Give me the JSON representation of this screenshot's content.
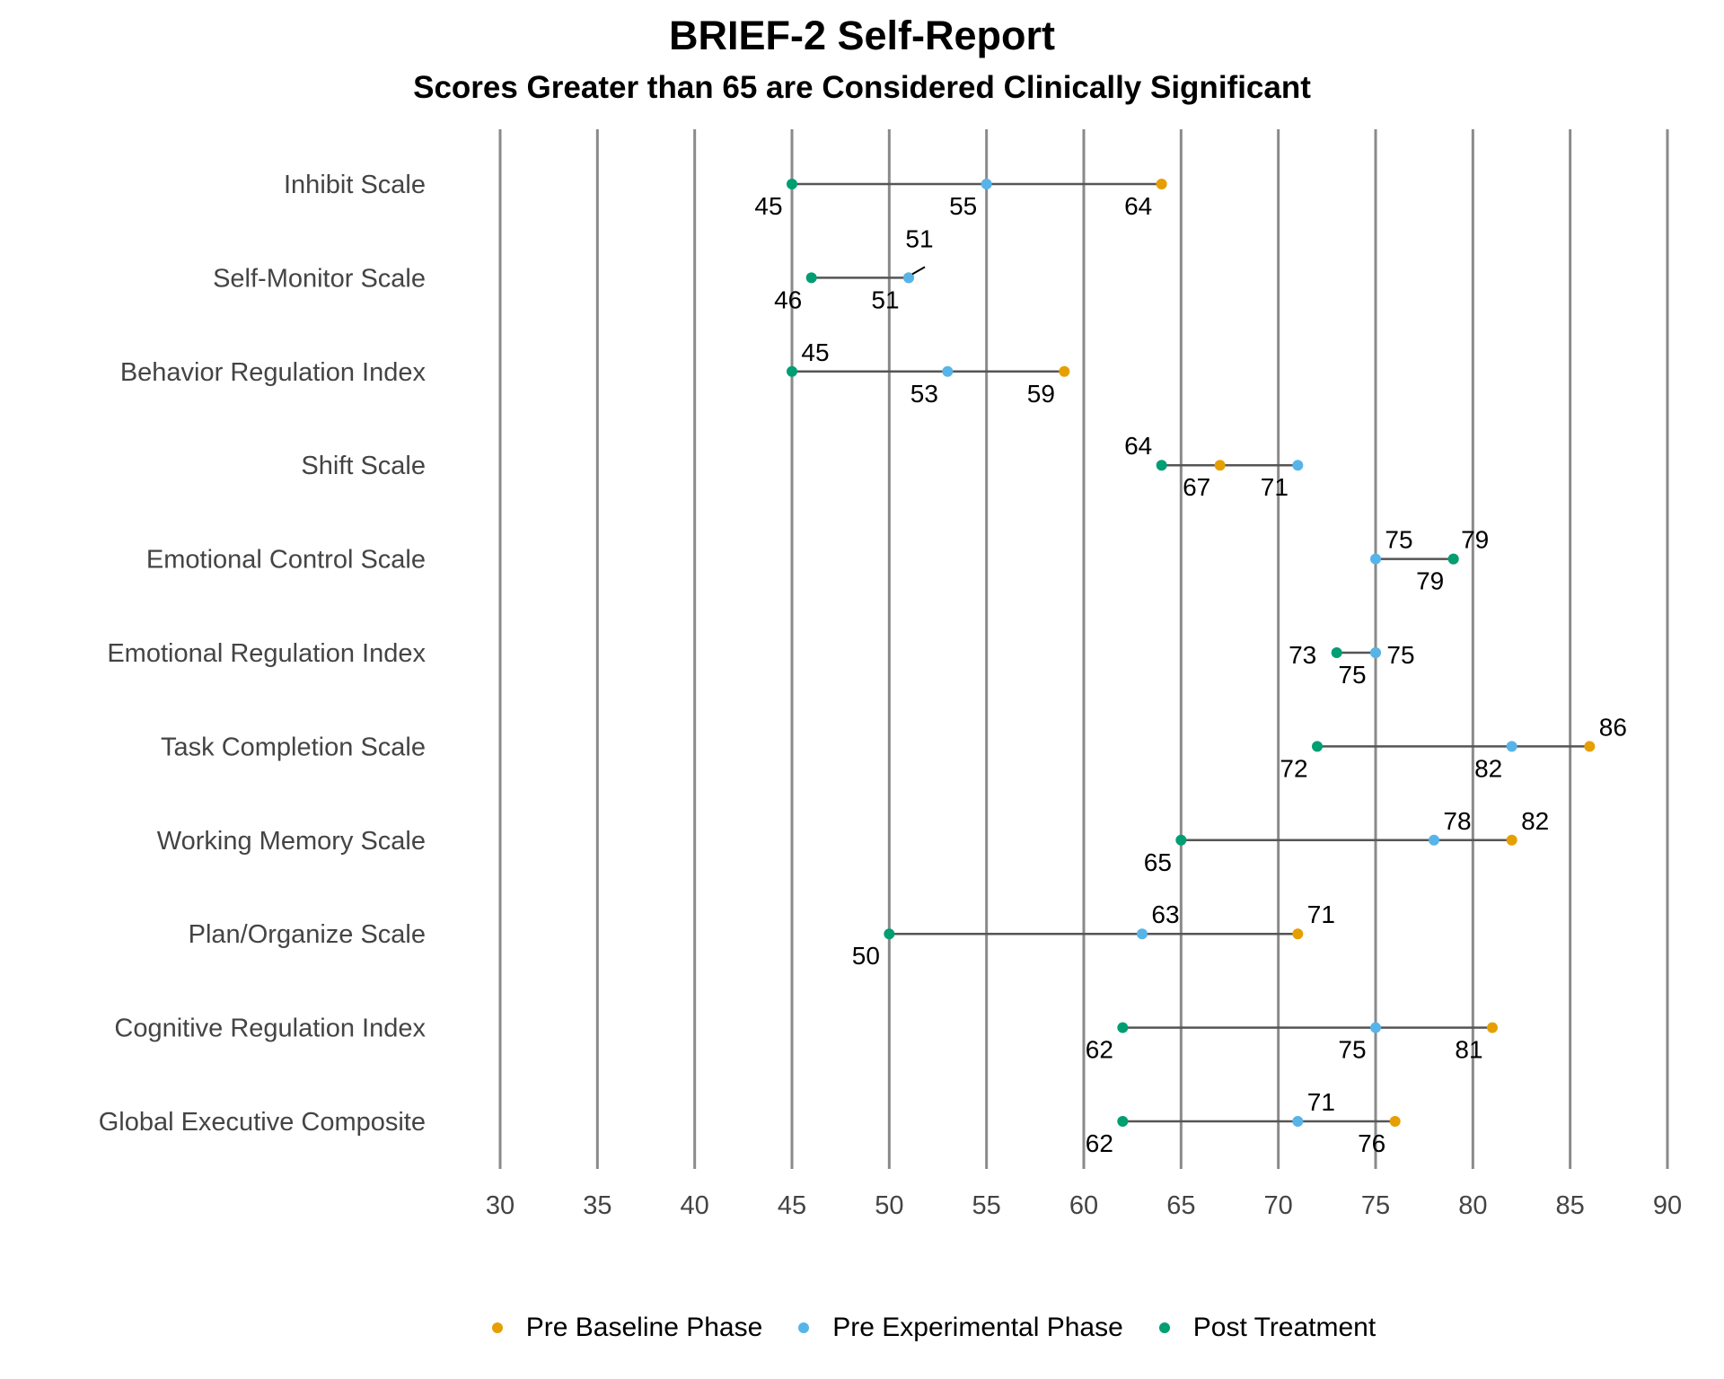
{
  "chart_data": {
    "type": "dumbbell",
    "title": "BRIEF-2 Self-Report",
    "subtitle": "Scores Greater than 65 are Considered Clinically Significant",
    "xlim": [
      30,
      90
    ],
    "xticks": [
      30,
      35,
      40,
      45,
      50,
      55,
      60,
      65,
      70,
      75,
      80,
      85,
      90
    ],
    "grid": "vertical",
    "legend_position": "bottom",
    "categories": [
      "Inhibit Scale",
      "Self-Monitor Scale",
      "Behavior Regulation Index",
      "Shift Scale",
      "Emotional Control Scale",
      "Emotional Regulation Index",
      "Task Completion Scale",
      "Working Memory Scale",
      "Plan/Organize Scale",
      "Cognitive Regulation Index",
      "Global Executive Composite"
    ],
    "series": [
      {
        "name": "Pre Baseline Phase",
        "color": "#E69F00",
        "values": [
          64,
          51,
          59,
          67,
          79,
          75,
          86,
          82,
          71,
          81,
          76
        ]
      },
      {
        "name": "Pre Experimental Phase",
        "color": "#56B4E9",
        "values": [
          55,
          51,
          53,
          71,
          75,
          75,
          82,
          78,
          63,
          75,
          71
        ]
      },
      {
        "name": "Post Treatment",
        "color": "#009E73",
        "values": [
          45,
          46,
          45,
          64,
          79,
          73,
          72,
          65,
          50,
          62,
          62
        ]
      }
    ]
  }
}
